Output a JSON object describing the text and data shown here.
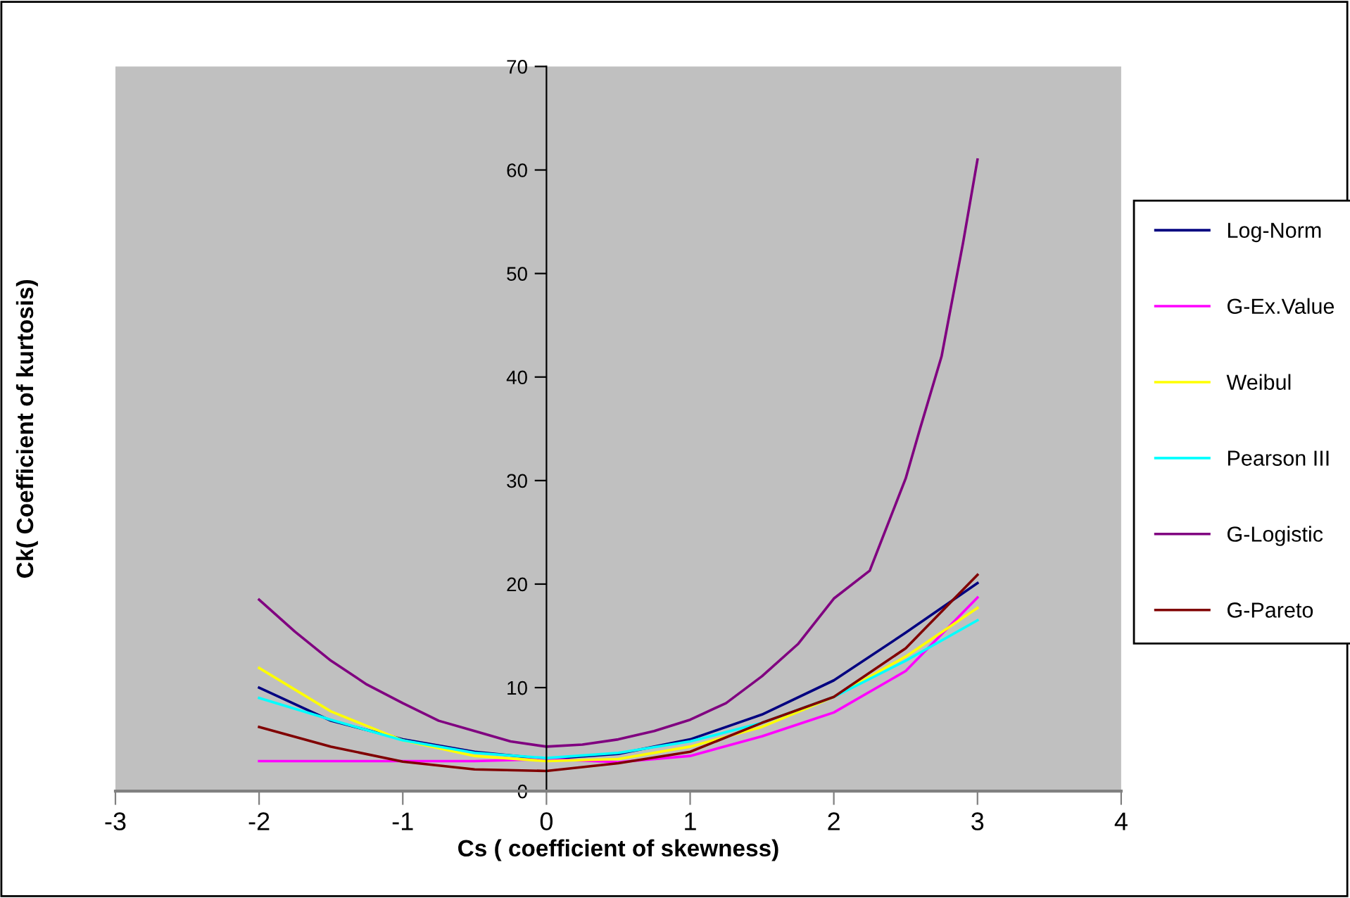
{
  "chart_data": {
    "type": "line",
    "xlabel": "Cs ( coefficient of skewness)",
    "ylabel": "Ck( Coefficient of kurtosis)",
    "x": [
      -2,
      -1.5,
      -1,
      -0.5,
      0,
      0.5,
      1,
      1.5,
      2,
      2.5,
      3
    ],
    "xlim": [
      -3,
      4
    ],
    "xticks": [
      -3,
      -2,
      -1,
      0,
      1,
      2,
      3,
      4
    ],
    "ylim": [
      0,
      70
    ],
    "yticks": [
      0,
      10,
      20,
      30,
      40,
      50,
      60,
      70
    ],
    "grid": false,
    "legend": "right",
    "marker": "none",
    "line_style": "solid",
    "series": [
      {
        "name": "Log-Norm",
        "color": "#000080",
        "values": [
          10.0,
          6.8,
          5.0,
          3.8,
          3.1,
          3.6,
          5.0,
          7.4,
          10.7,
          15.3,
          20.1
        ]
      },
      {
        "name": "G-Ex.Value",
        "color": "#ff00ff",
        "values": [
          2.9,
          2.9,
          2.9,
          2.9,
          3.1,
          2.8,
          3.4,
          5.3,
          7.6,
          11.6,
          18.7
        ]
      },
      {
        "name": "Weibul",
        "color": "#ffff00",
        "values": [
          11.9,
          7.7,
          4.9,
          3.4,
          2.9,
          3.1,
          4.3,
          6.2,
          9.1,
          13.0,
          17.7
        ]
      },
      {
        "name": "Pearson III",
        "color": "#00ffff",
        "values": [
          9.0,
          6.9,
          4.9,
          3.7,
          3.2,
          3.7,
          4.8,
          6.6,
          9.1,
          12.6,
          16.5
        ]
      },
      {
        "name": "G-Logistic",
        "color": "#800080",
        "x": [
          -2,
          -1.75,
          -1.5,
          -1.25,
          -1,
          -0.75,
          -0.5,
          -0.25,
          0,
          0.25,
          0.5,
          0.75,
          1,
          1.25,
          1.5,
          1.75,
          2,
          2.25,
          2.5,
          2.6,
          2.75,
          2.9,
          3
        ],
        "values": [
          18.5,
          15.4,
          12.6,
          10.3,
          8.5,
          6.8,
          5.8,
          4.8,
          4.3,
          4.5,
          5.0,
          5.8,
          6.9,
          8.5,
          11.1,
          14.2,
          18.6,
          21.3,
          30.2,
          35.0,
          42.0,
          53.0,
          61.0
        ]
      },
      {
        "name": "G-Pareto",
        "color": "#800000",
        "values": [
          6.2,
          4.3,
          2.85,
          2.1,
          1.95,
          2.7,
          3.8,
          6.6,
          9.1,
          13.8,
          20.9
        ]
      }
    ]
  }
}
